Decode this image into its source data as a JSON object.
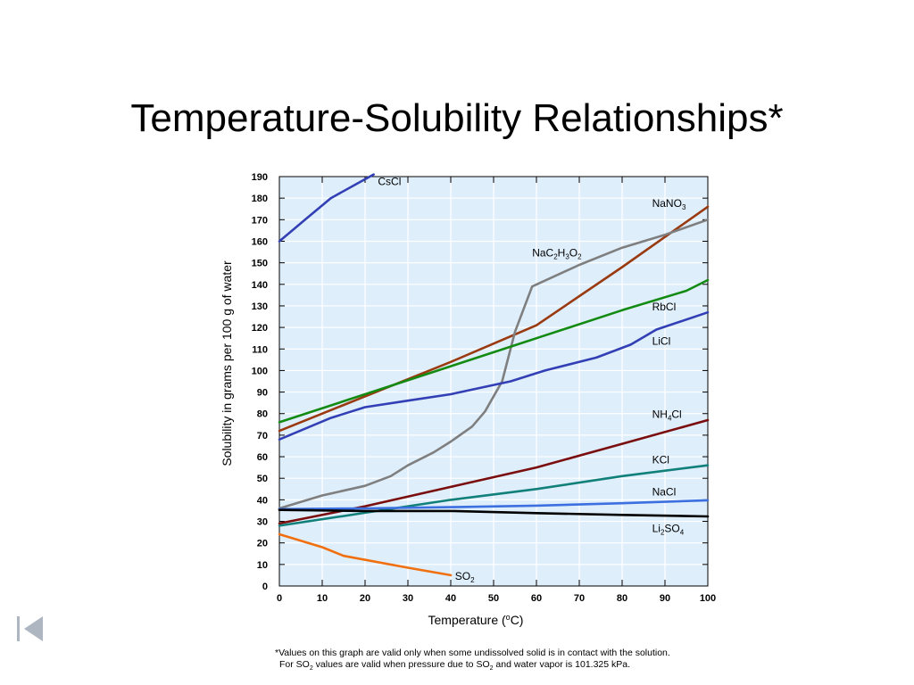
{
  "slide": {
    "title": "Temperature-Solubility Relationships*"
  },
  "footnote": {
    "line1": "*Values on this graph are valid only when some undissolved solid is in contact with the solution.",
    "line2_prefix": "For SO",
    "line2_sub1": "2",
    "line2_mid": " values are valid when pressure due to SO",
    "line2_sub2": "2",
    "line2_suffix": " and water vapor is 101.325 kPa."
  },
  "nav": {
    "icon": "first-slide-icon"
  },
  "chart_data": {
    "type": "line",
    "xlabel": "Temperature (°C)",
    "xlabel_parts": [
      "Temperature (",
      "o",
      "C)"
    ],
    "ylabel": "Solubility in grams per 100 g of water",
    "xlim": [
      0,
      100
    ],
    "ylim": [
      0,
      190
    ],
    "xticks": [
      0,
      10,
      20,
      30,
      40,
      50,
      60,
      70,
      80,
      90,
      100
    ],
    "yticks": [
      0,
      10,
      20,
      30,
      40,
      50,
      60,
      70,
      80,
      90,
      100,
      110,
      120,
      130,
      140,
      150,
      160,
      170,
      180,
      190
    ],
    "grid": true,
    "background": "#deeefb",
    "series": [
      {
        "name": "CsCl",
        "label": [
          [
            "CsCl",
            null
          ]
        ],
        "color": "#3340b5",
        "label_at": [
          23,
          186
        ],
        "points": [
          [
            0,
            160
          ],
          [
            6,
            170
          ],
          [
            12,
            180
          ],
          [
            22,
            191
          ]
        ]
      },
      {
        "name": "NaNO3",
        "label": [
          [
            "NaNO",
            null
          ],
          [
            "3",
            "sub"
          ]
        ],
        "color": "#9a3a10",
        "label_at": [
          87,
          176
        ],
        "points": [
          [
            0,
            72
          ],
          [
            20,
            88
          ],
          [
            40,
            104
          ],
          [
            60,
            121
          ],
          [
            80,
            148
          ],
          [
            100,
            176
          ]
        ]
      },
      {
        "name": "NaC2H3O2",
        "label": [
          [
            "NaC",
            null
          ],
          [
            "2",
            "sub"
          ],
          [
            "H",
            null
          ],
          [
            "3",
            "sub"
          ],
          [
            "O",
            null
          ],
          [
            "2",
            "sub"
          ]
        ],
        "color": "#7f7f7f",
        "label_at": [
          59,
          153
        ],
        "points": [
          [
            0,
            36
          ],
          [
            10,
            42
          ],
          [
            20,
            46.5
          ],
          [
            26,
            51
          ],
          [
            30,
            56
          ],
          [
            36,
            62
          ],
          [
            40,
            67
          ],
          [
            45,
            74
          ],
          [
            48,
            81
          ],
          [
            52,
            95
          ],
          [
            55,
            118
          ],
          [
            59,
            139
          ],
          [
            70,
            149
          ],
          [
            80,
            157
          ],
          [
            90,
            163
          ],
          [
            100,
            170
          ]
        ]
      },
      {
        "name": "RbCl",
        "label": [
          [
            "RbCl",
            null
          ]
        ],
        "color": "#138a12",
        "label_at": [
          87,
          128
        ],
        "points": [
          [
            0,
            76
          ],
          [
            20,
            89
          ],
          [
            40,
            102
          ],
          [
            60,
            115
          ],
          [
            80,
            128
          ],
          [
            95,
            137
          ],
          [
            100,
            142
          ]
        ]
      },
      {
        "name": "LiCl",
        "label": [
          [
            "LiCl",
            null
          ]
        ],
        "color": "#3340b5",
        "label_at": [
          87,
          112
        ],
        "points": [
          [
            0,
            68
          ],
          [
            12,
            78
          ],
          [
            20,
            83
          ],
          [
            30,
            86
          ],
          [
            40,
            89
          ],
          [
            54,
            95
          ],
          [
            62,
            100
          ],
          [
            74,
            106
          ],
          [
            82,
            112
          ],
          [
            88,
            119
          ],
          [
            100,
            127
          ]
        ]
      },
      {
        "name": "NH4Cl",
        "label": [
          [
            "NH",
            null
          ],
          [
            "4",
            "sub"
          ],
          [
            "Cl",
            null
          ]
        ],
        "color": "#7a0d0d",
        "label_at": [
          87,
          78
        ],
        "points": [
          [
            0,
            29
          ],
          [
            20,
            37
          ],
          [
            40,
            46
          ],
          [
            60,
            55
          ],
          [
            80,
            66
          ],
          [
            100,
            77
          ]
        ]
      },
      {
        "name": "KCl",
        "label": [
          [
            "KCl",
            null
          ]
        ],
        "color": "#12807a",
        "label_at": [
          87,
          57
        ],
        "points": [
          [
            0,
            28
          ],
          [
            20,
            34
          ],
          [
            40,
            40
          ],
          [
            60,
            45
          ],
          [
            80,
            51
          ],
          [
            100,
            56
          ]
        ]
      },
      {
        "name": "NaCl",
        "label": [
          [
            "NaCl",
            null
          ]
        ],
        "color": "#3c6fe0",
        "label_at": [
          87,
          42
        ],
        "points": [
          [
            0,
            35.7
          ],
          [
            20,
            36
          ],
          [
            40,
            36.6
          ],
          [
            60,
            37.3
          ],
          [
            80,
            38.4
          ],
          [
            100,
            39.8
          ]
        ]
      },
      {
        "name": "Li2SO4",
        "label": [
          [
            "Li",
            null
          ],
          [
            "2",
            "sub"
          ],
          [
            "SO",
            null
          ],
          [
            "4",
            "sub"
          ]
        ],
        "color": "#000000",
        "label_at": [
          87,
          25
        ],
        "points": [
          [
            0,
            35.3
          ],
          [
            20,
            34.8
          ],
          [
            40,
            34.8
          ],
          [
            60,
            33.8
          ],
          [
            80,
            33.0
          ],
          [
            100,
            32.3
          ]
        ]
      },
      {
        "name": "SO2",
        "label": [
          [
            "SO",
            null
          ],
          [
            "2",
            "sub"
          ]
        ],
        "color": "#f07010",
        "label_at": [
          41,
          3
        ],
        "points": [
          [
            0,
            24
          ],
          [
            10,
            18
          ],
          [
            15,
            14
          ],
          [
            30,
            8.5
          ],
          [
            40,
            5
          ]
        ]
      }
    ]
  }
}
